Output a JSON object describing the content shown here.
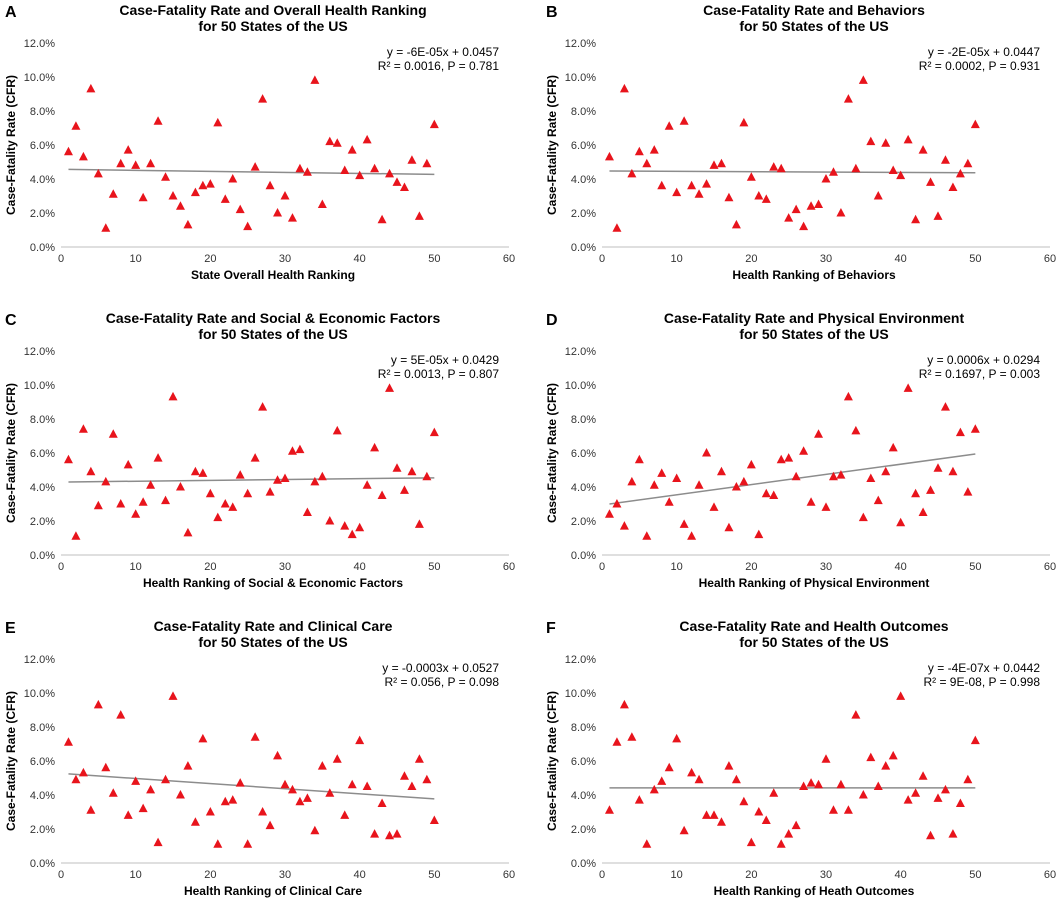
{
  "figure": {
    "description_labels": [
      "A",
      "B",
      "C",
      "D",
      "E",
      "F"
    ]
  },
  "chart_data": [
    {
      "type": "scatter",
      "panel": "A",
      "title_line1": "Case-Fatality Rate and Overall Health Ranking",
      "title_line2": "for 50 States of the US",
      "xlabel": "State Overall Health Ranking",
      "ylabel": "Case-Fatality Rate (CFR)",
      "xlim": [
        0,
        60
      ],
      "xticks": [
        "0",
        "10",
        "20",
        "30",
        "40",
        "50",
        "60"
      ],
      "ylim": [
        0,
        0.12
      ],
      "yticks": [
        "0.0%",
        "2.0%",
        "4.0%",
        "6.0%",
        "8.0%",
        "10.0%",
        "12.0%"
      ],
      "equation": "y = -6E-05x + 0.0457",
      "stats": "R² = 0.0016, P = 0.781",
      "trend": {
        "slope": -6e-05,
        "intercept": 0.0457,
        "x_range": [
          1,
          50
        ]
      },
      "x": [
        1,
        2,
        3,
        4,
        5,
        6,
        7,
        8,
        9,
        10,
        11,
        12,
        13,
        14,
        15,
        16,
        17,
        18,
        19,
        20,
        21,
        22,
        23,
        24,
        25,
        26,
        27,
        28,
        29,
        30,
        31,
        32,
        33,
        34,
        35,
        36,
        37,
        38,
        39,
        40,
        41,
        42,
        43,
        44,
        45,
        46,
        47,
        48,
        49,
        50
      ],
      "y": [
        0.056,
        0.071,
        0.053,
        0.093,
        0.043,
        0.011,
        0.031,
        0.049,
        0.057,
        0.048,
        0.029,
        0.049,
        0.074,
        0.041,
        0.03,
        0.024,
        0.013,
        0.032,
        0.036,
        0.037,
        0.073,
        0.028,
        0.04,
        0.022,
        0.012,
        0.047,
        0.087,
        0.036,
        0.02,
        0.03,
        0.017,
        0.046,
        0.044,
        0.098,
        0.025,
        0.062,
        0.061,
        0.045,
        0.057,
        0.042,
        0.063,
        0.046,
        0.016,
        0.043,
        0.038,
        0.035,
        0.051,
        0.018,
        0.049,
        0.072
      ]
    },
    {
      "type": "scatter",
      "panel": "B",
      "title_line1": "Case-Fatality Rate and Behaviors",
      "title_line2": "for 50 States of the US",
      "xlabel": "Health Ranking of Behaviors",
      "ylabel": "Case-Fatality Rate (CFR)",
      "xlim": [
        0,
        60
      ],
      "xticks": [
        "0",
        "10",
        "20",
        "30",
        "40",
        "50",
        "60"
      ],
      "ylim": [
        0,
        0.12
      ],
      "yticks": [
        "0.0%",
        "2.0%",
        "4.0%",
        "6.0%",
        "8.0%",
        "10.0%",
        "12.0%"
      ],
      "equation": "y = -2E-05x + 0.0447",
      "stats": "R² = 0.0002, P = 0.931",
      "trend": {
        "slope": -2e-05,
        "intercept": 0.0447,
        "x_range": [
          1,
          50
        ]
      },
      "x": [
        1,
        2,
        3,
        4,
        5,
        6,
        7,
        8,
        9,
        10,
        11,
        12,
        13,
        14,
        15,
        16,
        17,
        18,
        19,
        20,
        21,
        22,
        23,
        24,
        25,
        26,
        27,
        28,
        29,
        30,
        31,
        32,
        33,
        34,
        35,
        36,
        37,
        38,
        39,
        40,
        41,
        42,
        43,
        44,
        45,
        46,
        47,
        48,
        49,
        50
      ],
      "y": [
        0.053,
        0.011,
        0.093,
        0.043,
        0.056,
        0.049,
        0.057,
        0.036,
        0.071,
        0.032,
        0.074,
        0.036,
        0.031,
        0.037,
        0.048,
        0.049,
        0.029,
        0.013,
        0.073,
        0.041,
        0.03,
        0.028,
        0.047,
        0.046,
        0.017,
        0.022,
        0.012,
        0.024,
        0.025,
        0.04,
        0.044,
        0.02,
        0.087,
        0.046,
        0.098,
        0.062,
        0.03,
        0.061,
        0.045,
        0.042,
        0.063,
        0.016,
        0.057,
        0.038,
        0.018,
        0.051,
        0.035,
        0.043,
        0.049,
        0.072
      ]
    },
    {
      "type": "scatter",
      "panel": "C",
      "title_line1": "Case-Fatality Rate and Social & Economic Factors",
      "title_line2": "for 50 States of the US",
      "xlabel": "Health Ranking of Social & Economic Factors",
      "ylabel": "Case-Fatality Rate (CFR)",
      "xlim": [
        0,
        60
      ],
      "xticks": [
        "0",
        "10",
        "20",
        "30",
        "40",
        "50",
        "60"
      ],
      "ylim": [
        0,
        0.12
      ],
      "yticks": [
        "0.0%",
        "2.0%",
        "4.0%",
        "6.0%",
        "8.0%",
        "10.0%",
        "12.0%"
      ],
      "equation": "y = 5E-05x + 0.0429",
      "stats": "R² = 0.0013, P = 0.807",
      "trend": {
        "slope": 5e-05,
        "intercept": 0.0429,
        "x_range": [
          1,
          50
        ]
      },
      "x": [
        1,
        2,
        3,
        4,
        5,
        6,
        7,
        8,
        9,
        10,
        11,
        12,
        13,
        14,
        15,
        16,
        17,
        18,
        19,
        20,
        21,
        22,
        23,
        24,
        25,
        26,
        27,
        28,
        29,
        30,
        31,
        32,
        33,
        34,
        35,
        36,
        37,
        38,
        39,
        40,
        41,
        42,
        43,
        44,
        45,
        46,
        47,
        48,
        49,
        50
      ],
      "y": [
        0.056,
        0.011,
        0.074,
        0.049,
        0.029,
        0.043,
        0.071,
        0.03,
        0.053,
        0.024,
        0.031,
        0.041,
        0.057,
        0.032,
        0.093,
        0.04,
        0.013,
        0.049,
        0.048,
        0.036,
        0.022,
        0.03,
        0.028,
        0.047,
        0.036,
        0.057,
        0.087,
        0.037,
        0.044,
        0.045,
        0.061,
        0.062,
        0.025,
        0.043,
        0.046,
        0.02,
        0.073,
        0.017,
        0.012,
        0.016,
        0.041,
        0.063,
        0.035,
        0.098,
        0.051,
        0.038,
        0.049,
        0.018,
        0.046,
        0.072
      ]
    },
    {
      "type": "scatter",
      "panel": "D",
      "title_line1": "Case-Fatality Rate and Physical Environment",
      "title_line2": "for 50 States of the US",
      "xlabel": "Health Ranking of Physical Environment",
      "ylabel": "Case-Fatality Rate (CFR)",
      "xlim": [
        0,
        60
      ],
      "xticks": [
        "0",
        "10",
        "20",
        "30",
        "40",
        "50",
        "60"
      ],
      "ylim": [
        0,
        0.12
      ],
      "yticks": [
        "0.0%",
        "2.0%",
        "4.0%",
        "6.0%",
        "8.0%",
        "10.0%",
        "12.0%"
      ],
      "equation": "y = 0.0006x + 0.0294",
      "stats": "R² = 0.1697, P = 0.003",
      "trend": {
        "slope": 0.0006,
        "intercept": 0.0294,
        "x_range": [
          1,
          50
        ]
      },
      "x": [
        1,
        2,
        3,
        4,
        5,
        6,
        7,
        8,
        9,
        10,
        11,
        12,
        13,
        14,
        15,
        16,
        17,
        18,
        19,
        20,
        21,
        22,
        23,
        24,
        25,
        26,
        27,
        28,
        29,
        30,
        31,
        32,
        33,
        34,
        35,
        36,
        37,
        38,
        39,
        40,
        41,
        42,
        43,
        44,
        45,
        46,
        47,
        48,
        49,
        50
      ],
      "y": [
        0.024,
        0.03,
        0.017,
        0.043,
        0.056,
        0.011,
        0.041,
        0.048,
        0.031,
        0.045,
        0.018,
        0.011,
        0.041,
        0.06,
        0.028,
        0.049,
        0.016,
        0.04,
        0.043,
        0.053,
        0.012,
        0.036,
        0.035,
        0.056,
        0.057,
        0.046,
        0.061,
        0.031,
        0.071,
        0.028,
        0.046,
        0.047,
        0.093,
        0.073,
        0.022,
        0.045,
        0.032,
        0.049,
        0.063,
        0.019,
        0.098,
        0.036,
        0.025,
        0.038,
        0.051,
        0.087,
        0.049,
        0.072,
        0.037,
        0.074
      ]
    },
    {
      "type": "scatter",
      "panel": "E",
      "title_line1": "Case-Fatality Rate and Clinical Care",
      "title_line2": "for 50 States of the US",
      "xlabel": "Health Ranking of Clinical Care",
      "ylabel": "Case-Fatality Rate (CFR)",
      "xlim": [
        0,
        60
      ],
      "xticks": [
        "0",
        "10",
        "20",
        "30",
        "40",
        "50",
        "60"
      ],
      "ylim": [
        0,
        0.12
      ],
      "yticks": [
        "0.0%",
        "2.0%",
        "4.0%",
        "6.0%",
        "8.0%",
        "10.0%",
        "12.0%"
      ],
      "equation": "y = -0.0003x + 0.0527",
      "stats": "R² = 0.056, P = 0.098",
      "trend": {
        "slope": -0.0003,
        "intercept": 0.0527,
        "x_range": [
          1,
          50
        ]
      },
      "x": [
        1,
        2,
        3,
        4,
        5,
        6,
        7,
        8,
        9,
        10,
        11,
        12,
        13,
        14,
        15,
        16,
        17,
        18,
        19,
        20,
        21,
        22,
        23,
        24,
        25,
        26,
        27,
        28,
        29,
        30,
        31,
        32,
        33,
        34,
        35,
        36,
        37,
        38,
        39,
        40,
        41,
        42,
        43,
        44,
        45,
        46,
        47,
        48,
        49,
        50
      ],
      "y": [
        0.071,
        0.049,
        0.053,
        0.031,
        0.093,
        0.056,
        0.041,
        0.087,
        0.028,
        0.048,
        0.032,
        0.043,
        0.012,
        0.049,
        0.098,
        0.04,
        0.057,
        0.024,
        0.073,
        0.03,
        0.011,
        0.036,
        0.037,
        0.047,
        0.011,
        0.074,
        0.03,
        0.022,
        0.063,
        0.046,
        0.043,
        0.036,
        0.038,
        0.019,
        0.057,
        0.041,
        0.061,
        0.028,
        0.046,
        0.072,
        0.045,
        0.017,
        0.035,
        0.016,
        0.017,
        0.051,
        0.045,
        0.061,
        0.049,
        0.025
      ]
    },
    {
      "type": "scatter",
      "panel": "F",
      "title_line1": "Case-Fatality Rate and Health Outcomes",
      "title_line2": "for 50 States of the US",
      "xlabel": "Health Ranking of Heath Outcomes",
      "ylabel": "Case-Fatality Rate (CFR)",
      "xlim": [
        0,
        60
      ],
      "xticks": [
        "0",
        "10",
        "20",
        "30",
        "40",
        "50",
        "60"
      ],
      "ylim": [
        0,
        0.12
      ],
      "yticks": [
        "0.0%",
        "2.0%",
        "4.0%",
        "6.0%",
        "8.0%",
        "10.0%",
        "12.0%"
      ],
      "equation": "y = -4E-07x + 0.0442",
      "stats": "R² = 9E-08, P = 0.998",
      "trend": {
        "slope": -4e-07,
        "intercept": 0.0442,
        "x_range": [
          1,
          50
        ]
      },
      "x": [
        1,
        2,
        3,
        4,
        5,
        6,
        7,
        8,
        9,
        10,
        11,
        12,
        13,
        14,
        15,
        16,
        17,
        18,
        19,
        20,
        21,
        22,
        23,
        24,
        25,
        26,
        27,
        28,
        29,
        30,
        31,
        32,
        33,
        34,
        35,
        36,
        37,
        38,
        39,
        40,
        41,
        42,
        43,
        44,
        45,
        46,
        47,
        48,
        49,
        50
      ],
      "y": [
        0.031,
        0.071,
        0.093,
        0.074,
        0.037,
        0.011,
        0.043,
        0.048,
        0.056,
        0.073,
        0.019,
        0.053,
        0.049,
        0.028,
        0.028,
        0.024,
        0.057,
        0.049,
        0.036,
        0.012,
        0.03,
        0.025,
        0.041,
        0.011,
        0.017,
        0.022,
        0.045,
        0.047,
        0.046,
        0.061,
        0.031,
        0.046,
        0.031,
        0.087,
        0.04,
        0.062,
        0.045,
        0.057,
        0.063,
        0.098,
        0.037,
        0.041,
        0.051,
        0.016,
        0.038,
        0.043,
        0.017,
        0.035,
        0.049,
        0.072
      ]
    }
  ]
}
